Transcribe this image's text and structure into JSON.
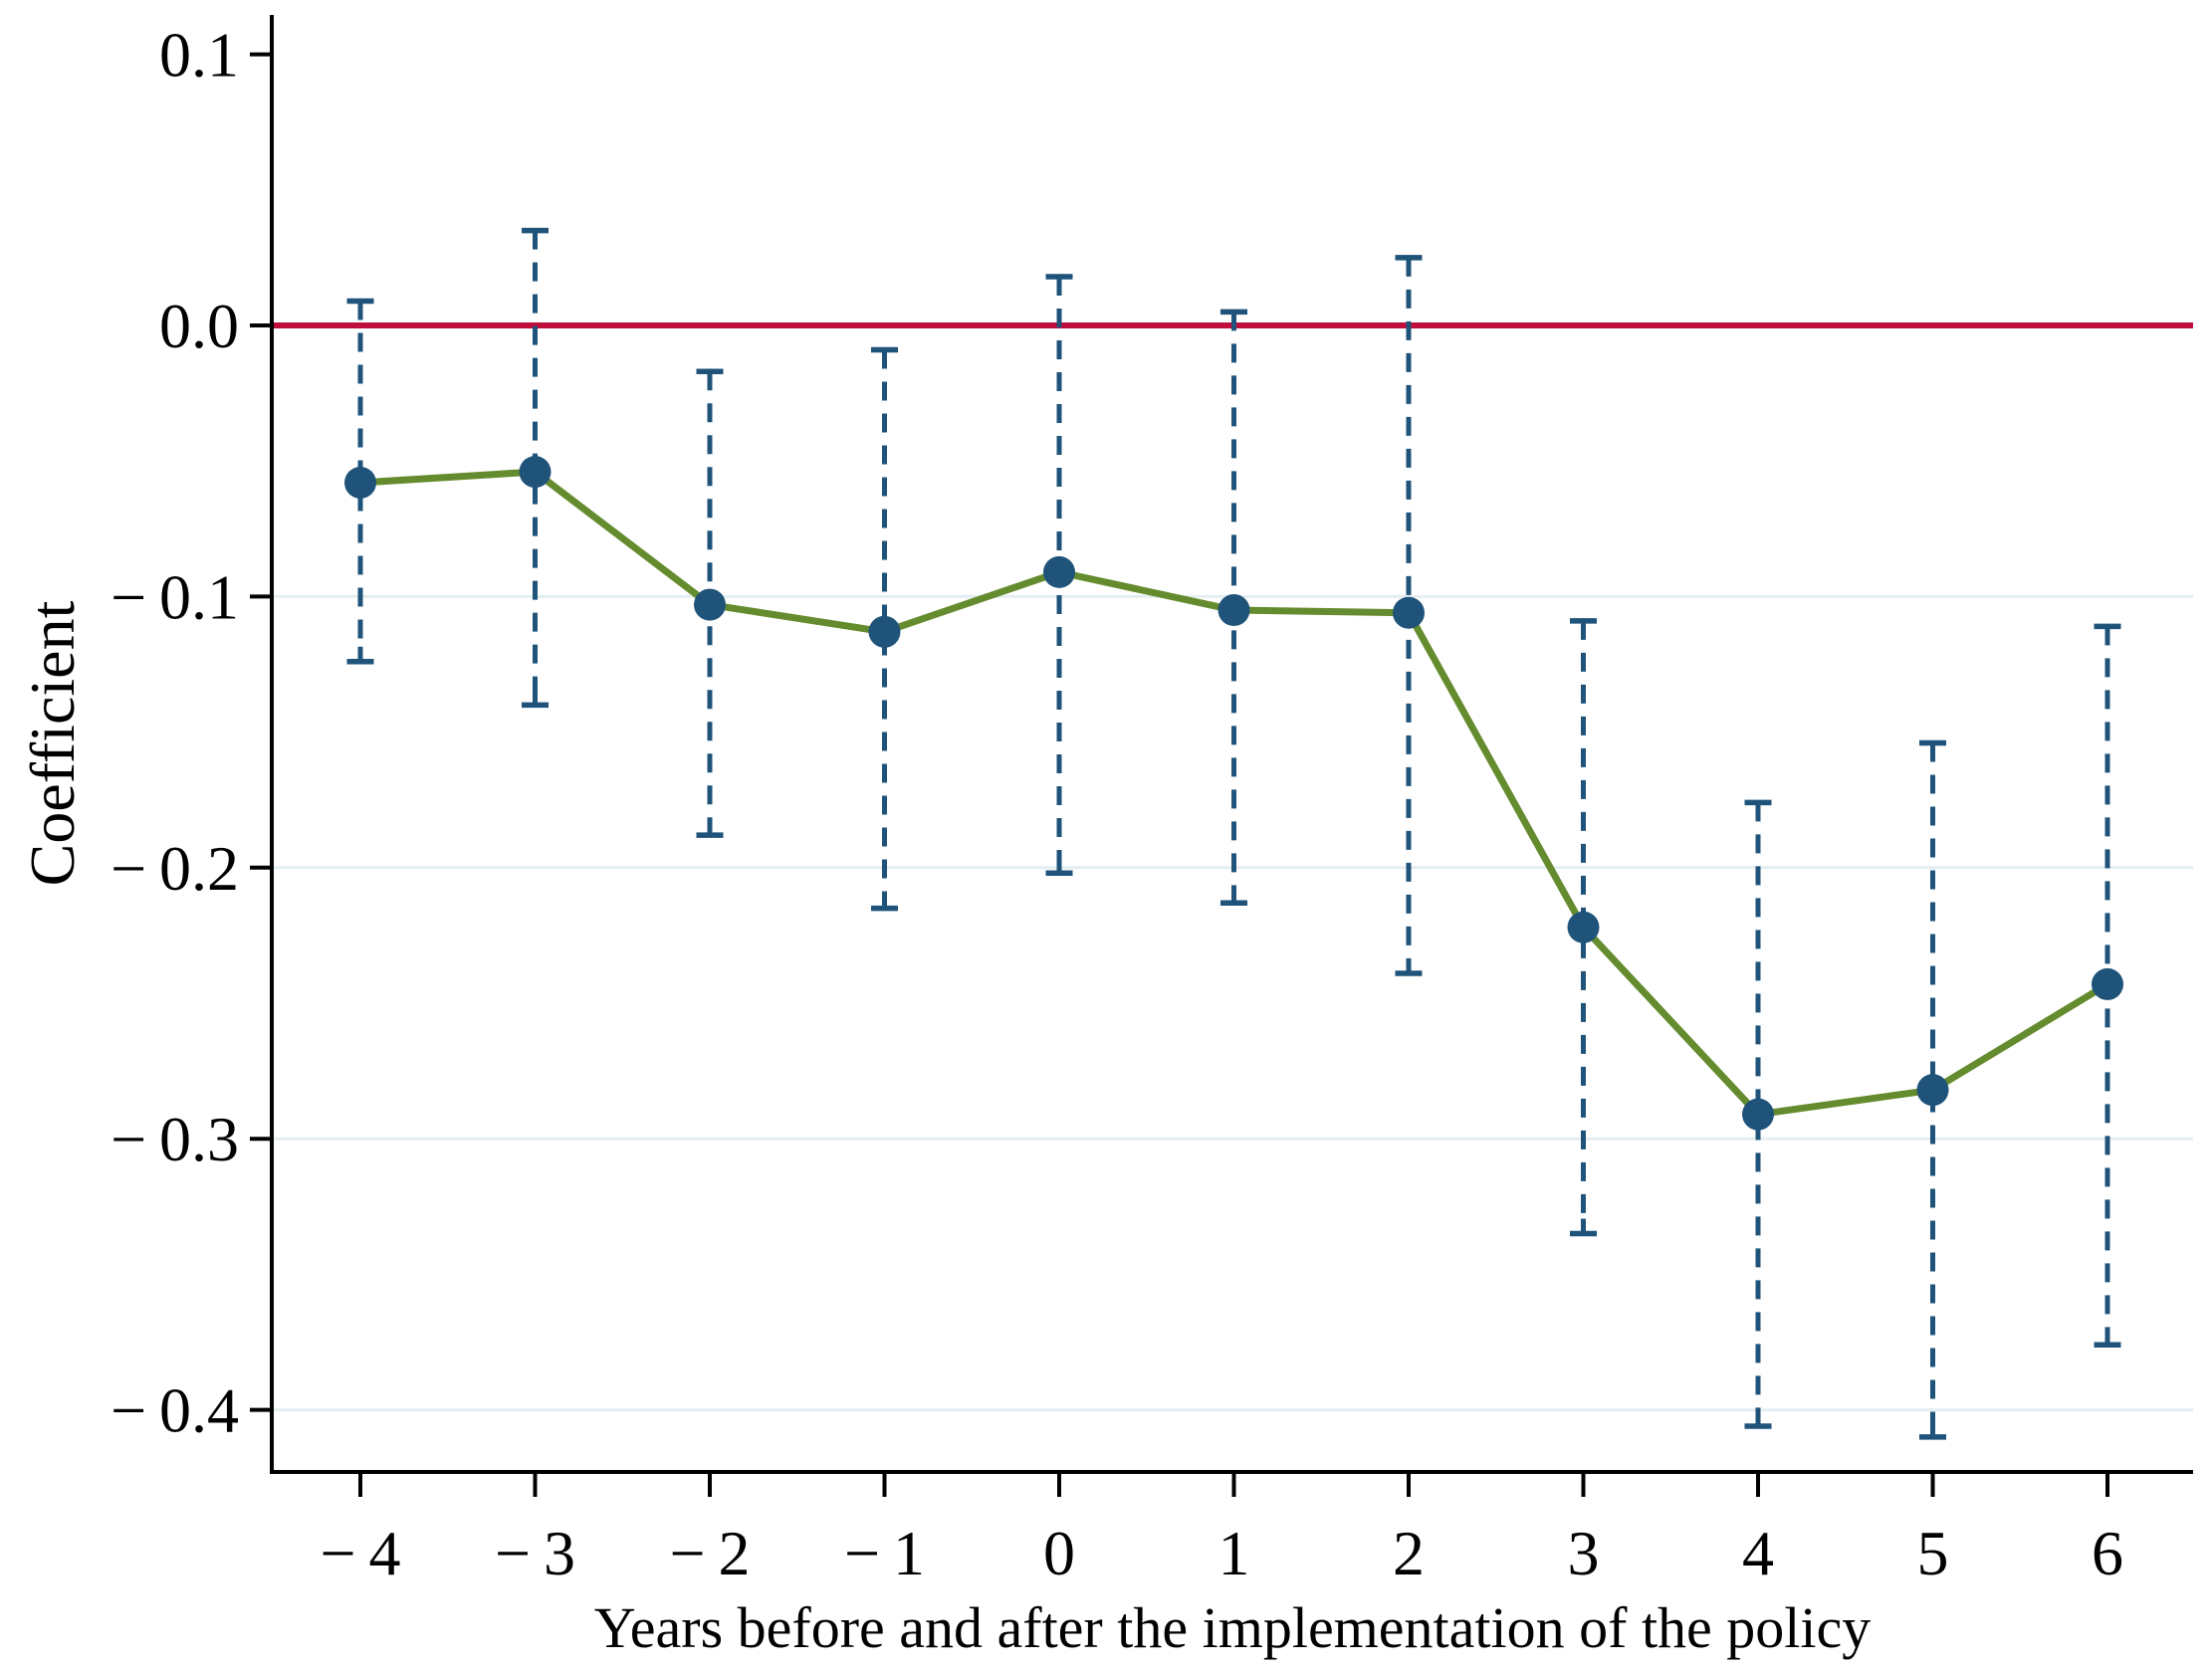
{
  "figure": {
    "background": "#ffffff",
    "description": "Event-study coefficient plot with 95% confidence interval whiskers and a zero reference line"
  },
  "chart_data": {
    "type": "line",
    "title": "",
    "xlabel": "Years before and after the implementation of the policy",
    "ylabel": "Coefficient",
    "x": [
      -4,
      -3,
      -2,
      -1,
      0,
      1,
      2,
      3,
      4,
      5,
      6
    ],
    "x_tick_labels": [
      "− 4",
      "− 3",
      "− 2",
      "− 1",
      "0",
      "1",
      "2",
      "3",
      "4",
      "5",
      "6"
    ],
    "y_ticks": [
      0.1,
      0.0,
      -0.1,
      -0.2,
      -0.3,
      -0.4
    ],
    "y_tick_labels": [
      "0.1",
      "0.0",
      "− 0.1",
      "− 0.2",
      "− 0.3",
      "− 0.4"
    ],
    "xlim": [
      -4.51,
      6.49
    ],
    "ylim": [
      -0.423,
      0.1145
    ],
    "grid": "horizontal light gridlines at -0.1, -0.2, -0.3, -0.4 only",
    "legend": "none",
    "reference_line_y": 0.0,
    "series": [
      {
        "name": "coefficient",
        "values": [
          -0.058,
          -0.054,
          -0.103,
          -0.113,
          -0.091,
          -0.105,
          -0.106,
          -0.222,
          -0.291,
          -0.282,
          -0.243
        ]
      },
      {
        "name": "ci_upper_95",
        "values": [
          0.009,
          0.035,
          -0.017,
          -0.009,
          0.018,
          0.005,
          0.025,
          -0.109,
          -0.176,
          -0.154,
          -0.111
        ]
      },
      {
        "name": "ci_lower_95",
        "values": [
          -0.124,
          -0.14,
          -0.188,
          -0.215,
          -0.202,
          -0.213,
          -0.239,
          -0.335,
          -0.406,
          -0.41,
          -0.376
        ]
      }
    ],
    "colors": {
      "marker_and_ci": "#1f537a",
      "line": "#648c2e",
      "zero_line": "#bf0d3c",
      "gridline": "#e4eef1",
      "axis": "#000000",
      "text": "#000000"
    }
  }
}
